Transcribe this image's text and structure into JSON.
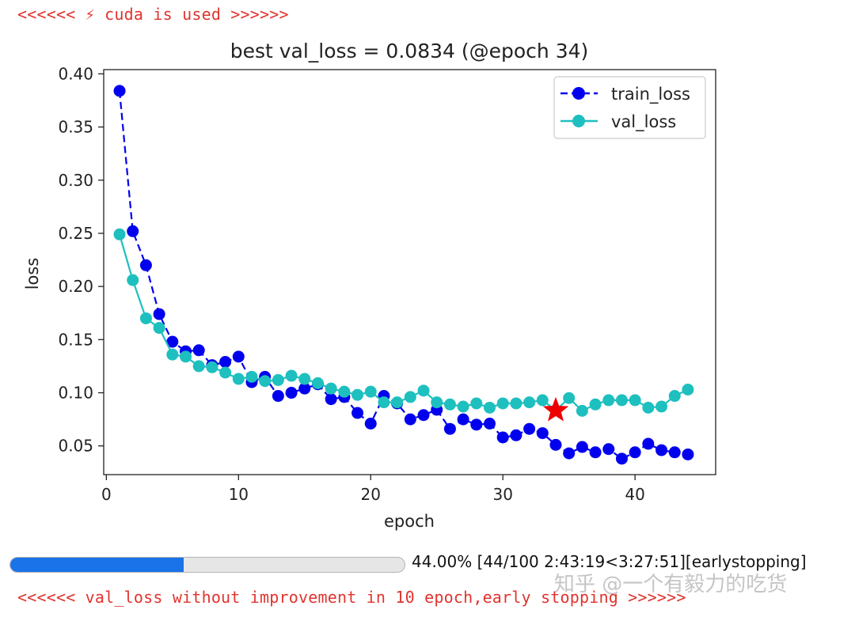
{
  "log": {
    "top": "<<<<<< ⚡ cuda is used >>>>>>",
    "bottom": "<<<<<< val_loss without improvement in 10 epoch,early stopping >>>>>>"
  },
  "colors": {
    "log_text": "#e0342f",
    "train": "#0000ee",
    "val": "#1ebfbf",
    "best_marker": "#ee0000",
    "progress_fill": "#1a73e8"
  },
  "chart_data": {
    "type": "line",
    "title": "best val_loss = 0.0834 (@epoch 34)",
    "xlabel": "epoch",
    "ylabel": "loss",
    "xlim": [
      -0.2,
      46.1
    ],
    "ylim": [
      0.023,
      0.404
    ],
    "xticks": [
      0,
      10,
      20,
      30,
      40
    ],
    "xtick_labels": [
      "0",
      "10",
      "20",
      "30",
      "40"
    ],
    "yticks": [
      0.05,
      0.1,
      0.15,
      0.2,
      0.25,
      0.3,
      0.35,
      0.4
    ],
    "ytick_labels": [
      "0.05",
      "0.10",
      "0.15",
      "0.20",
      "0.25",
      "0.30",
      "0.35",
      "0.40"
    ],
    "grid": false,
    "legend_position": "top-right",
    "x": [
      1,
      2,
      3,
      4,
      5,
      6,
      7,
      8,
      9,
      10,
      11,
      12,
      13,
      14,
      15,
      16,
      17,
      18,
      19,
      20,
      21,
      22,
      23,
      24,
      25,
      26,
      27,
      28,
      29,
      30,
      31,
      32,
      33,
      34,
      35,
      36,
      37,
      38,
      39,
      40,
      41,
      42,
      43,
      44
    ],
    "series": [
      {
        "name": "train_loss",
        "style": "dashed-dots",
        "color": "#0000ee",
        "values": [
          0.384,
          0.252,
          0.22,
          0.174,
          0.148,
          0.139,
          0.14,
          0.126,
          0.129,
          0.134,
          0.11,
          0.115,
          0.097,
          0.1,
          0.104,
          0.108,
          0.094,
          0.096,
          0.081,
          0.071,
          0.097,
          0.09,
          0.075,
          0.079,
          0.084,
          0.066,
          0.075,
          0.07,
          0.071,
          0.058,
          0.06,
          0.066,
          0.062,
          0.051,
          0.043,
          0.049,
          0.044,
          0.047,
          0.038,
          0.044,
          0.052,
          0.046,
          0.044,
          0.042
        ]
      },
      {
        "name": "val_loss",
        "style": "solid-dots",
        "color": "#1ebfbf",
        "values": [
          0.249,
          0.206,
          0.17,
          0.161,
          0.136,
          0.134,
          0.125,
          0.124,
          0.119,
          0.113,
          0.115,
          0.111,
          0.112,
          0.116,
          0.113,
          0.109,
          0.104,
          0.101,
          0.098,
          0.101,
          0.091,
          0.091,
          0.096,
          0.102,
          0.091,
          0.089,
          0.087,
          0.09,
          0.086,
          0.09,
          0.09,
          0.091,
          0.093,
          0.0834,
          0.095,
          0.083,
          0.089,
          0.093,
          0.093,
          0.093,
          0.086,
          0.087,
          0.097,
          0.103
        ]
      }
    ],
    "best": {
      "epoch": 34,
      "value": 0.0834
    }
  },
  "progress": {
    "percent": 44,
    "text": "44.00% [44/100 2:43:19<3:27:51][earlystopping]"
  },
  "watermark": "知乎 @一个有毅力的吃货"
}
